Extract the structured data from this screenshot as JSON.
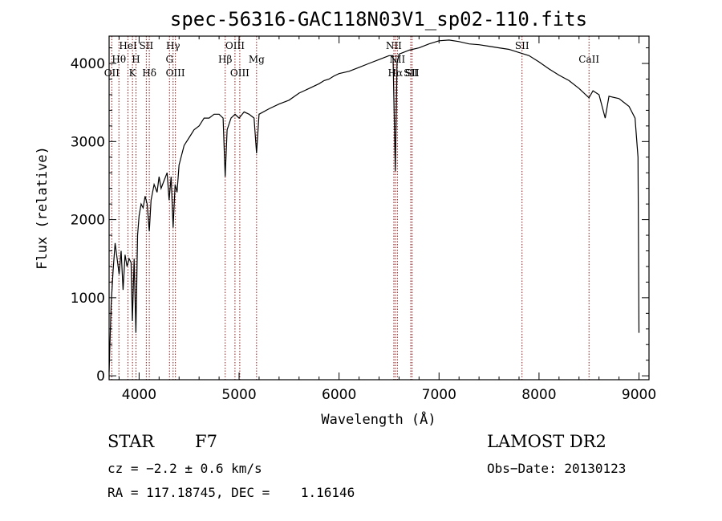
{
  "chart_data": {
    "type": "line",
    "title": "spec-56316-GAC118N03V1_sp02-110.fits",
    "xlabel": "Wavelength (Å)",
    "ylabel": "Flux (relative)",
    "xlim": [
      3700,
      9100
    ],
    "ylim": [
      -50,
      4350
    ],
    "x_ticks": [
      4000,
      5000,
      6000,
      7000,
      8000,
      9000
    ],
    "y_ticks": [
      0,
      1000,
      2000,
      3000,
      4000
    ],
    "grid": false,
    "series": [
      {
        "points": [
          [
            3700,
            50
          ],
          [
            3720,
            900
          ],
          [
            3740,
            1350
          ],
          [
            3760,
            1700
          ],
          [
            3780,
            1500
          ],
          [
            3800,
            1300
          ],
          [
            3820,
            1600
          ],
          [
            3840,
            1100
          ],
          [
            3860,
            1550
          ],
          [
            3880,
            1400
          ],
          [
            3900,
            1500
          ],
          [
            3920,
            1450
          ],
          [
            3933,
            700
          ],
          [
            3950,
            1500
          ],
          [
            3968,
            550
          ],
          [
            3985,
            1800
          ],
          [
            4000,
            2050
          ],
          [
            4020,
            2200
          ],
          [
            4040,
            2150
          ],
          [
            4060,
            2300
          ],
          [
            4080,
            2200
          ],
          [
            4102,
            1850
          ],
          [
            4120,
            2250
          ],
          [
            4150,
            2450
          ],
          [
            4180,
            2350
          ],
          [
            4200,
            2550
          ],
          [
            4220,
            2400
          ],
          [
            4250,
            2500
          ],
          [
            4280,
            2600
          ],
          [
            4300,
            2250
          ],
          [
            4320,
            2550
          ],
          [
            4340,
            1900
          ],
          [
            4360,
            2450
          ],
          [
            4380,
            2350
          ],
          [
            4400,
            2700
          ],
          [
            4450,
            2950
          ],
          [
            4500,
            3050
          ],
          [
            4550,
            3150
          ],
          [
            4600,
            3200
          ],
          [
            4650,
            3300
          ],
          [
            4700,
            3300
          ],
          [
            4750,
            3350
          ],
          [
            4800,
            3350
          ],
          [
            4840,
            3300
          ],
          [
            4861,
            2550
          ],
          [
            4880,
            3150
          ],
          [
            4920,
            3300
          ],
          [
            4960,
            3350
          ],
          [
            5000,
            3300
          ],
          [
            5050,
            3380
          ],
          [
            5100,
            3350
          ],
          [
            5150,
            3300
          ],
          [
            5175,
            2850
          ],
          [
            5200,
            3350
          ],
          [
            5300,
            3420
          ],
          [
            5400,
            3480
          ],
          [
            5500,
            3530
          ],
          [
            5600,
            3620
          ],
          [
            5700,
            3680
          ],
          [
            5800,
            3740
          ],
          [
            5850,
            3780
          ],
          [
            5900,
            3800
          ],
          [
            5950,
            3840
          ],
          [
            6000,
            3870
          ],
          [
            6100,
            3900
          ],
          [
            6200,
            3950
          ],
          [
            6300,
            4000
          ],
          [
            6400,
            4050
          ],
          [
            6500,
            4100
          ],
          [
            6540,
            4100
          ],
          [
            6563,
            2620
          ],
          [
            6580,
            4000
          ],
          [
            6600,
            4120
          ],
          [
            6700,
            4170
          ],
          [
            6800,
            4200
          ],
          [
            6900,
            4250
          ],
          [
            7000,
            4290
          ],
          [
            7100,
            4300
          ],
          [
            7200,
            4280
          ],
          [
            7300,
            4250
          ],
          [
            7400,
            4240
          ],
          [
            7500,
            4220
          ],
          [
            7600,
            4200
          ],
          [
            7700,
            4180
          ],
          [
            7800,
            4140
          ],
          [
            7900,
            4100
          ],
          [
            8000,
            4020
          ],
          [
            8100,
            3930
          ],
          [
            8200,
            3850
          ],
          [
            8300,
            3780
          ],
          [
            8400,
            3680
          ],
          [
            8500,
            3560
          ],
          [
            8540,
            3650
          ],
          [
            8600,
            3600
          ],
          [
            8662,
            3300
          ],
          [
            8700,
            3580
          ],
          [
            8800,
            3550
          ],
          [
            8900,
            3450
          ],
          [
            8960,
            3300
          ],
          [
            8990,
            2800
          ],
          [
            9000,
            550
          ]
        ]
      }
    ],
    "line_markers": [
      {
        "label": "OII",
        "wl": 3727,
        "row": 3
      },
      {
        "label": "Hθ",
        "wl": 3798,
        "row": 2
      },
      {
        "label": "HeI",
        "wl": 3889,
        "row": 1
      },
      {
        "label": "K",
        "wl": 3934,
        "row": 3
      },
      {
        "label": "H",
        "wl": 3969,
        "row": 2
      },
      {
        "label": "SII",
        "wl": 4072,
        "row": 1
      },
      {
        "label": "Hδ",
        "wl": 4102,
        "row": 3
      },
      {
        "label": "Hγ",
        "wl": 4340,
        "row": 1
      },
      {
        "label": "G",
        "wl": 4304,
        "row": 2
      },
      {
        "label": "OIII",
        "wl": 4363,
        "row": 3
      },
      {
        "label": "Hβ",
        "wl": 4861,
        "row": 2
      },
      {
        "label": "OIII",
        "wl": 4959,
        "row": 1
      },
      {
        "label": "OIII",
        "wl": 5007,
        "row": 3
      },
      {
        "label": "Mg",
        "wl": 5175,
        "row": 2
      },
      {
        "label": "NII",
        "wl": 6548,
        "row": 1
      },
      {
        "label": "Hα",
        "wl": 6563,
        "row": 3
      },
      {
        "label": "NII",
        "wl": 6583,
        "row": 2
      },
      {
        "label": "SII",
        "wl": 6717,
        "row": 3
      },
      {
        "label": "SII",
        "wl": 6731,
        "row": 3
      },
      {
        "label": "SII",
        "wl": 7830,
        "row": 1
      },
      {
        "label": "CaII",
        "wl": 8500,
        "row": 2
      }
    ],
    "marker_color": "#8b1a1a"
  },
  "info": {
    "class": "STAR",
    "subclass": "F7",
    "survey": "LAMOST DR2",
    "cz": "cz = −2.2 ± 0.6 km/s",
    "obs_date": "Obs−Date: 20130123",
    "coords": "RA = 117.18745, DEC =    1.16146"
  }
}
